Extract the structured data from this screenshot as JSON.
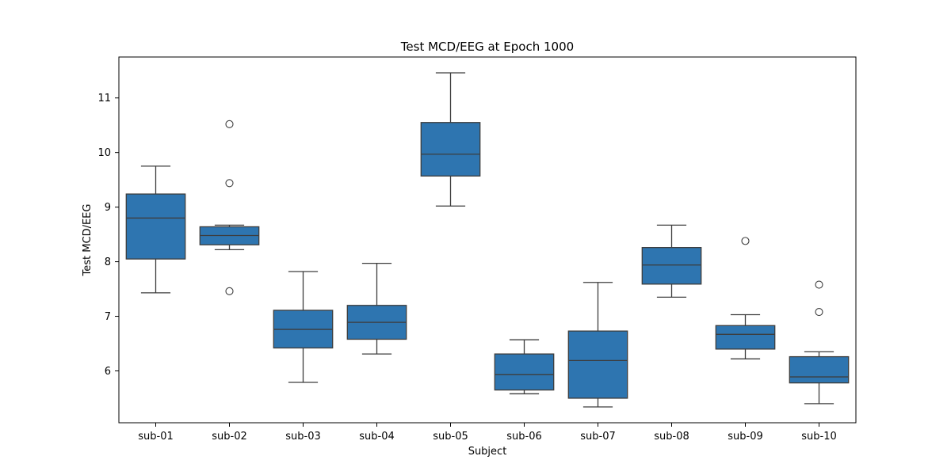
{
  "chart_data": {
    "type": "box",
    "title": "Test MCD/EEG at Epoch 1000",
    "xlabel": "Subject",
    "ylabel": "Test MCD/EEG",
    "ylim": [
      5.05,
      11.75
    ],
    "yticks": [
      6,
      7,
      8,
      9,
      10,
      11
    ],
    "grid": false,
    "box_color": "#2e75b0",
    "line_color": "#3d3d3d",
    "categories": [
      "sub-01",
      "sub-02",
      "sub-03",
      "sub-04",
      "sub-05",
      "sub-06",
      "sub-07",
      "sub-08",
      "sub-09",
      "sub-10"
    ],
    "boxes": [
      {
        "whisker_low": 7.43,
        "q1": 8.05,
        "median": 8.8,
        "q3": 9.24,
        "whisker_high": 9.75,
        "outliers": []
      },
      {
        "whisker_low": 8.22,
        "q1": 8.31,
        "median": 8.48,
        "q3": 8.64,
        "whisker_high": 8.67,
        "outliers": [
          10.52,
          9.44,
          7.46
        ]
      },
      {
        "whisker_low": 5.79,
        "q1": 6.42,
        "median": 6.76,
        "q3": 7.11,
        "whisker_high": 7.82,
        "outliers": []
      },
      {
        "whisker_low": 6.31,
        "q1": 6.58,
        "median": 6.89,
        "q3": 7.2,
        "whisker_high": 7.97,
        "outliers": []
      },
      {
        "whisker_low": 9.02,
        "q1": 9.57,
        "median": 9.97,
        "q3": 10.55,
        "whisker_high": 11.46,
        "outliers": []
      },
      {
        "whisker_low": 5.58,
        "q1": 5.65,
        "median": 5.93,
        "q3": 6.31,
        "whisker_high": 6.57,
        "outliers": []
      },
      {
        "whisker_low": 5.34,
        "q1": 5.5,
        "median": 6.19,
        "q3": 6.73,
        "whisker_high": 7.62,
        "outliers": []
      },
      {
        "whisker_low": 7.35,
        "q1": 7.59,
        "median": 7.94,
        "q3": 8.26,
        "whisker_high": 8.67,
        "outliers": []
      },
      {
        "whisker_low": 6.22,
        "q1": 6.4,
        "median": 6.67,
        "q3": 6.83,
        "whisker_high": 7.03,
        "outliers": [
          8.38
        ]
      },
      {
        "whisker_low": 5.4,
        "q1": 5.78,
        "median": 5.89,
        "q3": 6.26,
        "whisker_high": 6.35,
        "outliers": [
          7.58,
          7.08
        ]
      }
    ]
  }
}
